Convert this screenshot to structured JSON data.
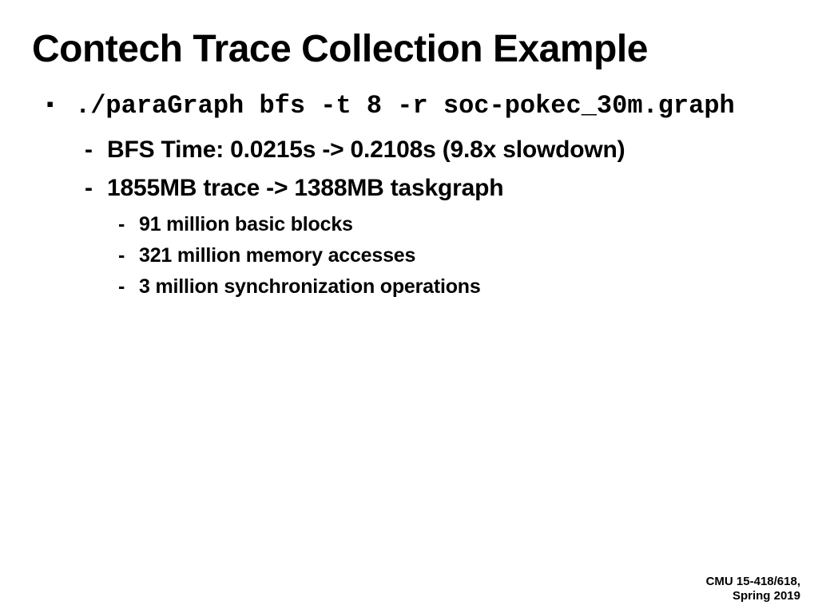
{
  "title": "Contech Trace Collection Example",
  "command": "./paraGraph bfs -t 8 -r soc-pokec_30m.graph",
  "level2": [
    "BFS Time: 0.0215s  -> 0.2108s   (9.8x slowdown)",
    "1855MB trace -> 1388MB taskgraph"
  ],
  "level3": [
    "91 million basic blocks",
    "321 million memory accesses",
    "3 million synchronization operations"
  ],
  "footer": {
    "line1": "CMU 15-418/618,",
    "line2": "Spring 2019"
  }
}
